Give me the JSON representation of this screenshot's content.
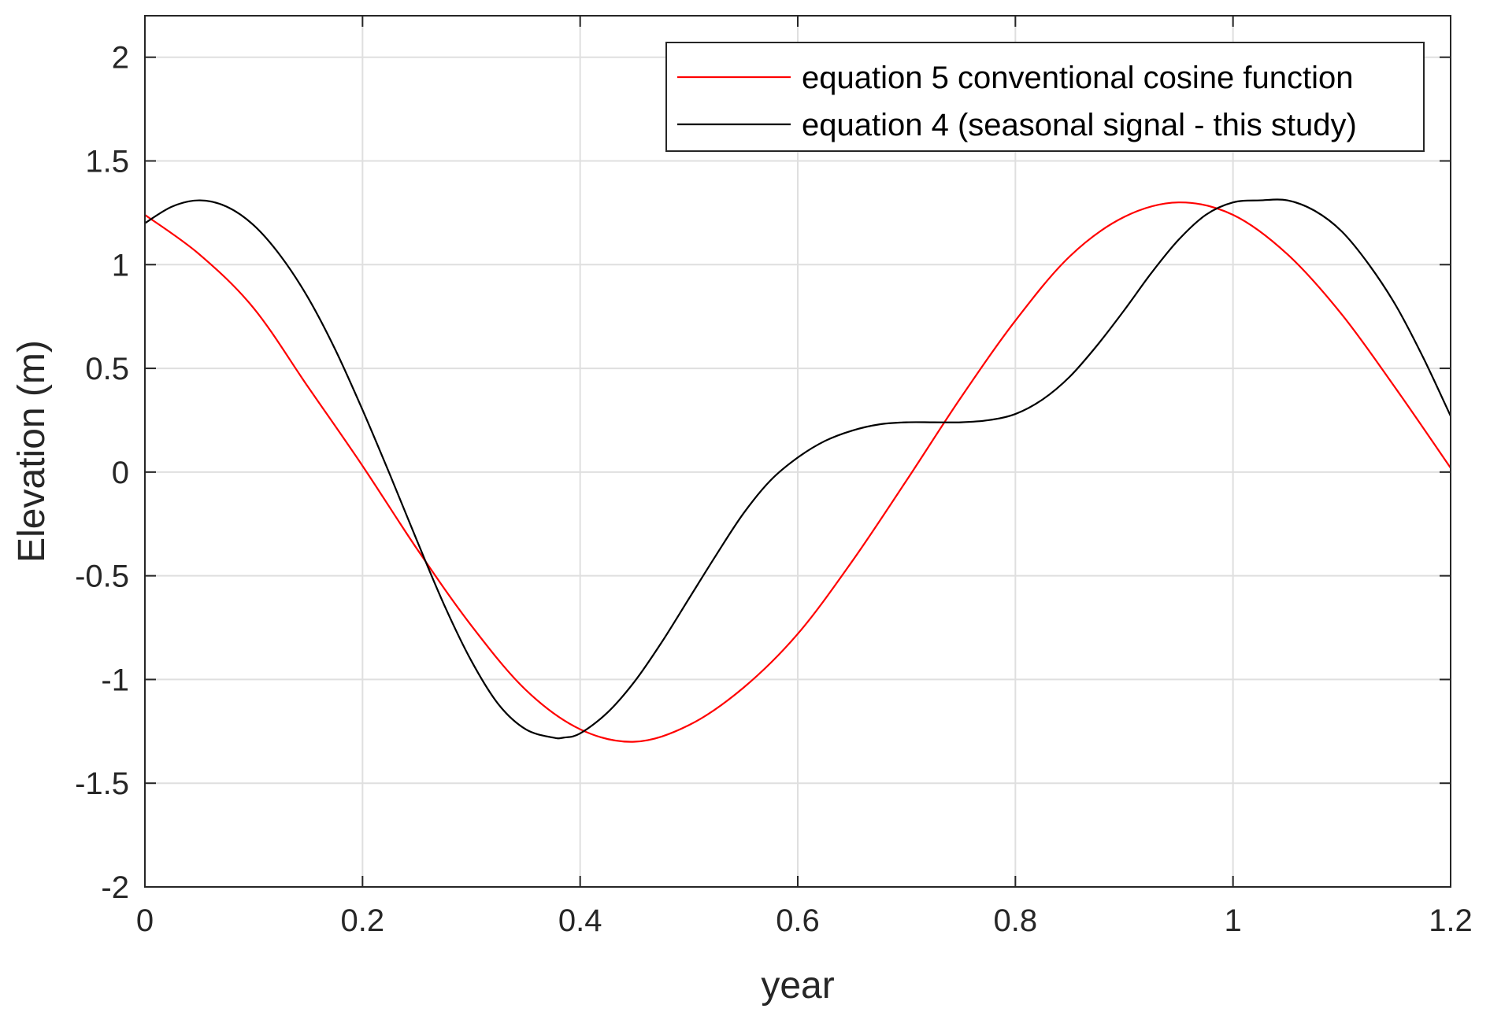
{
  "chart_data": {
    "type": "line",
    "title": "",
    "xlabel": "year",
    "ylabel": "Elevation (m)",
    "xlim": [
      0,
      1.2
    ],
    "ylim": [
      -2,
      2.2
    ],
    "xticks": [
      0,
      0.2,
      0.4,
      0.6,
      0.8,
      1,
      1.2
    ],
    "xtick_labels": [
      "0",
      "0.2",
      "0.4",
      "0.6",
      "0.8",
      "1",
      "1.2"
    ],
    "yticks": [
      -2,
      -1.5,
      -1,
      -0.5,
      0,
      0.5,
      1,
      1.5,
      2
    ],
    "ytick_labels": [
      "-2",
      "-1.5",
      "-1",
      "-0.5",
      "0",
      "0.5",
      "1",
      "1.5",
      "2"
    ],
    "grid": true,
    "legend_position": "top-right",
    "series": [
      {
        "name": "equation 5 conventional cosine function",
        "color": "#ff0000",
        "x": [
          0,
          0.05,
          0.1,
          0.15,
          0.2,
          0.25,
          0.3,
          0.35,
          0.4,
          0.45,
          0.5,
          0.55,
          0.6,
          0.65,
          0.7,
          0.75,
          0.8,
          0.85,
          0.9,
          0.95,
          1.0,
          1.05,
          1.1,
          1.15,
          1.2
        ],
        "y": [
          1.24,
          1.05,
          0.79,
          0.41,
          0.03,
          -0.37,
          -0.74,
          -1.05,
          -1.24,
          -1.3,
          -1.22,
          -1.04,
          -0.78,
          -0.43,
          -0.04,
          0.36,
          0.73,
          1.04,
          1.23,
          1.3,
          1.24,
          1.05,
          0.76,
          0.4,
          0.02
        ]
      },
      {
        "name": "equation 4 (seasonal signal - this study)",
        "color": "#000000",
        "x": [
          0,
          0.025,
          0.05,
          0.075,
          0.1,
          0.125,
          0.15,
          0.175,
          0.2,
          0.225,
          0.25,
          0.275,
          0.3,
          0.325,
          0.35,
          0.375,
          0.385,
          0.4,
          0.425,
          0.45,
          0.475,
          0.5,
          0.525,
          0.55,
          0.575,
          0.6,
          0.625,
          0.65,
          0.675,
          0.7,
          0.725,
          0.75,
          0.775,
          0.8,
          0.825,
          0.85,
          0.875,
          0.9,
          0.925,
          0.95,
          0.975,
          1.0,
          1.025,
          1.05,
          1.075,
          1.1,
          1.125,
          1.15,
          1.175,
          1.2
        ],
        "y": [
          1.2,
          1.28,
          1.31,
          1.28,
          1.19,
          1.04,
          0.84,
          0.59,
          0.3,
          -0.01,
          -0.33,
          -0.64,
          -0.91,
          -1.12,
          -1.24,
          -1.28,
          -1.28,
          -1.26,
          -1.16,
          -1.01,
          -0.82,
          -0.61,
          -0.4,
          -0.2,
          -0.04,
          0.07,
          0.15,
          0.2,
          0.23,
          0.24,
          0.24,
          0.24,
          0.25,
          0.28,
          0.35,
          0.46,
          0.61,
          0.78,
          0.96,
          1.12,
          1.24,
          1.3,
          1.31,
          1.31,
          1.26,
          1.16,
          1.0,
          0.8,
          0.55,
          0.27
        ]
      }
    ]
  }
}
